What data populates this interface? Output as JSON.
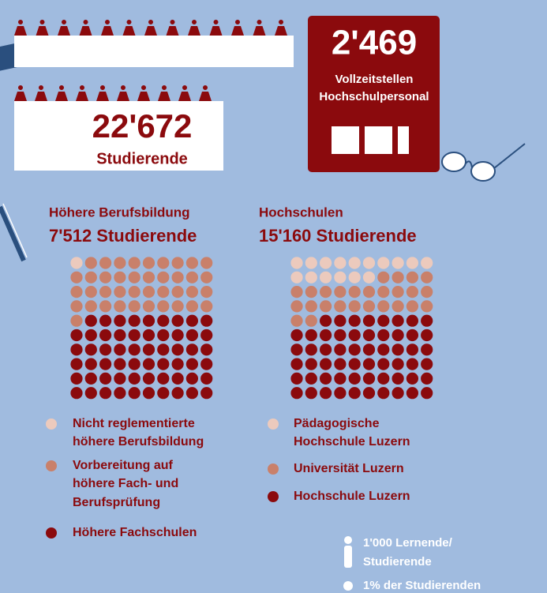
{
  "header": {
    "students_total": "22'672",
    "students_label": "Studierende",
    "staff_total": "2'469",
    "staff_label": [
      "Vollzeitstellen",
      "Hochschulpersonal"
    ]
  },
  "chart_data": [
    {
      "type": "waffle",
      "title": "Höhere Berufsbildung",
      "subtitle": "7'512 Studierende",
      "categories": [
        [
          "Nicht reglementierte",
          "höhere Berufsbildung"
        ],
        [
          "Vorbereitung auf",
          "höhere Fach- und",
          "Berufsprüfung"
        ],
        [
          "Höhere Fachschulen"
        ]
      ],
      "values": [
        1,
        40,
        59
      ],
      "colors": [
        "#eccabd",
        "#c9806a",
        "#8b0a0d"
      ]
    },
    {
      "type": "waffle",
      "title": "Hochschulen",
      "subtitle": "15'160 Studierende",
      "categories": [
        [
          "Pädagogische",
          "Hochschule Luzern"
        ],
        [
          "Universität Luzern"
        ],
        [
          "Hochschule Luzern"
        ]
      ],
      "values": [
        16,
        26,
        58
      ],
      "colors": [
        "#eccabd",
        "#c9806a",
        "#8b0a0d"
      ]
    }
  ],
  "legend_key": {
    "person": [
      "1'000 Lernende/",
      "Studierende"
    ],
    "dot": "1% der Studierenden"
  }
}
